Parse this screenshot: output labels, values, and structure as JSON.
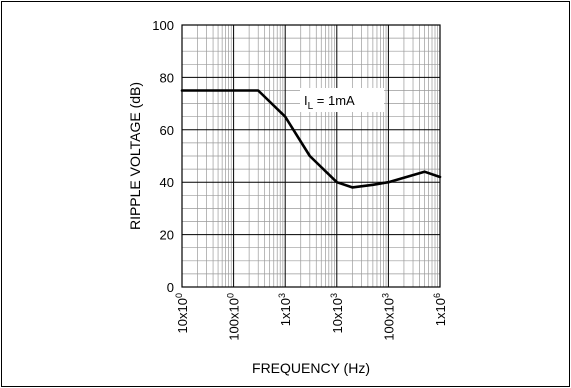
{
  "chart_data": {
    "type": "line",
    "xscale": "log",
    "xlim": [
      10,
      1000000
    ],
    "ylim": [
      0,
      100
    ],
    "xlabel": "FREQUENCY (Hz)",
    "ylabel": "RIPPLE VOLTAGE (dB)",
    "grid": true,
    "x_tick_labels": [
      "10x10^0",
      "100x10^0",
      "1x10^3",
      "10x10^3",
      "100x10^3",
      "1x10^6"
    ],
    "y_tick_labels": [
      "0",
      "20",
      "40",
      "60",
      "80",
      "100"
    ],
    "y_ticks": [
      0,
      20,
      40,
      60,
      80,
      100
    ],
    "annotation": {
      "main": "I",
      "sub": "L",
      "rest": " = 1mA"
    },
    "series": [
      {
        "x": [
          10,
          100,
          300,
          1000,
          3000,
          10000,
          20000,
          50000,
          100000,
          500000,
          1000000
        ],
        "y": [
          75,
          75,
          75,
          65,
          50,
          40,
          38,
          39,
          40,
          44,
          42
        ]
      }
    ]
  }
}
